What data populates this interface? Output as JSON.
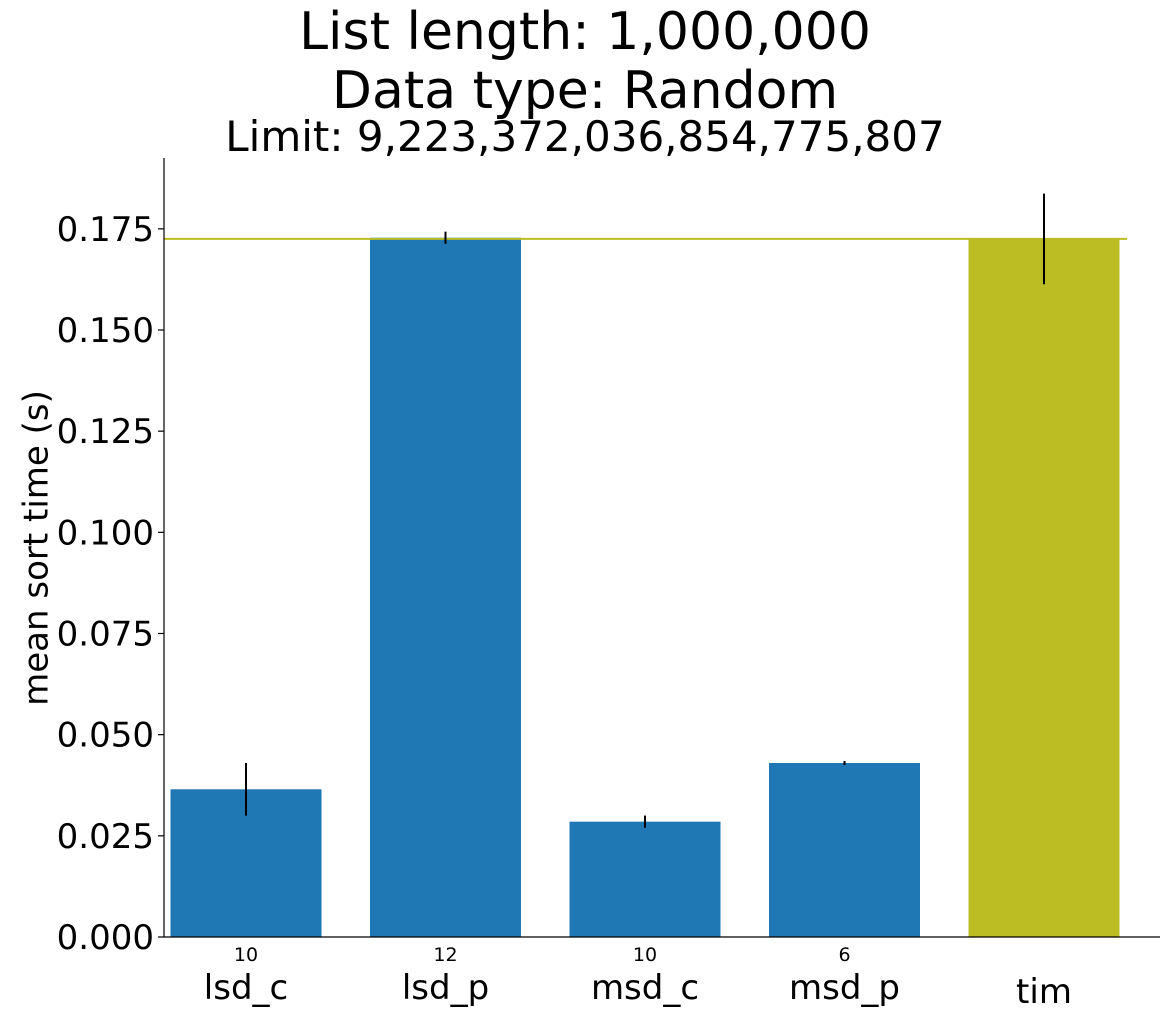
{
  "chart_data": {
    "type": "bar",
    "title_lines": [
      "List length: 1,000,000",
      "Data type: Random",
      "Limit: 9,223,372,036,854,775,807"
    ],
    "xlabel": "",
    "ylabel": "mean sort time (s)",
    "ylim": [
      0,
      0.1925
    ],
    "yticks": [
      "0.000",
      "0.025",
      "0.050",
      "0.075",
      "0.100",
      "0.125",
      "0.150",
      "0.175"
    ],
    "categories": [
      "lsd_c",
      "lsd_p",
      "msd_c",
      "msd_p",
      "tim"
    ],
    "sublabels": [
      "10",
      "12",
      "10",
      "6",
      ""
    ],
    "values": [
      0.0365,
      0.1728,
      0.0285,
      0.043,
      0.1725
    ],
    "errors": [
      0.0065,
      0.0015,
      0.0015,
      0.0005,
      0.0112
    ],
    "colors": [
      "#1f77b4",
      "#1f77b4",
      "#1f77b4",
      "#1f77b4",
      "#bcbd22"
    ],
    "reference_line": {
      "value": 0.1725,
      "color": "#bcbd22"
    },
    "grid": false,
    "legend": "none"
  }
}
